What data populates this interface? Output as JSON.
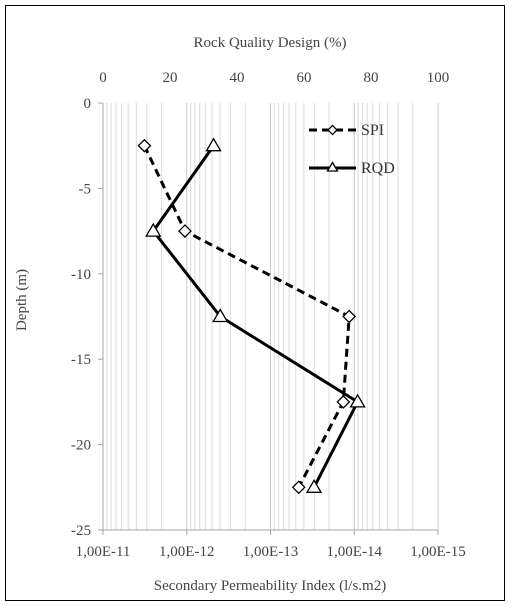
{
  "chart_data": {
    "type": "line",
    "top_axis": {
      "label": "Rock Quality Design (%)",
      "range": [
        0,
        100
      ],
      "ticks": [
        "0",
        "20",
        "40",
        "60",
        "80",
        "100"
      ]
    },
    "bottom_axis": {
      "label": "Secondary Permeability  Index (l/s.m2)",
      "scale": "log",
      "ticks": [
        "1,00E-11",
        "1,00E-12",
        "1,00E-13",
        "1,00E-14",
        "1,00E-15"
      ]
    },
    "y_axis": {
      "label": "Depth (m)",
      "range": [
        -25,
        0
      ],
      "ticks": [
        "0",
        "-5",
        "-10",
        "-15",
        "-20",
        "-25"
      ]
    },
    "grid": "vertical minor log gridlines",
    "legend_position": "top-right",
    "series": [
      {
        "name": "SPI",
        "axis": "bottom",
        "style": "dashed",
        "marker": "diamond",
        "points": [
          {
            "x": 3.2e-12,
            "y": -2.5
          },
          {
            "x": 1.05e-12,
            "y": -7.5
          },
          {
            "x": 1.15e-14,
            "y": -12.5
          },
          {
            "x": 1.35e-14,
            "y": -17.5
          },
          {
            "x": 4.6e-14,
            "y": -22.5
          }
        ]
      },
      {
        "name": "RQD",
        "axis": "top",
        "style": "solid",
        "marker": "triangle",
        "points": [
          {
            "x": 33,
            "y": -2.5
          },
          {
            "x": 15,
            "y": -7.5
          },
          {
            "x": 35,
            "y": -12.5
          },
          {
            "x": 76,
            "y": -17.5
          },
          {
            "x": 63,
            "y": -22.5
          }
        ]
      }
    ]
  }
}
